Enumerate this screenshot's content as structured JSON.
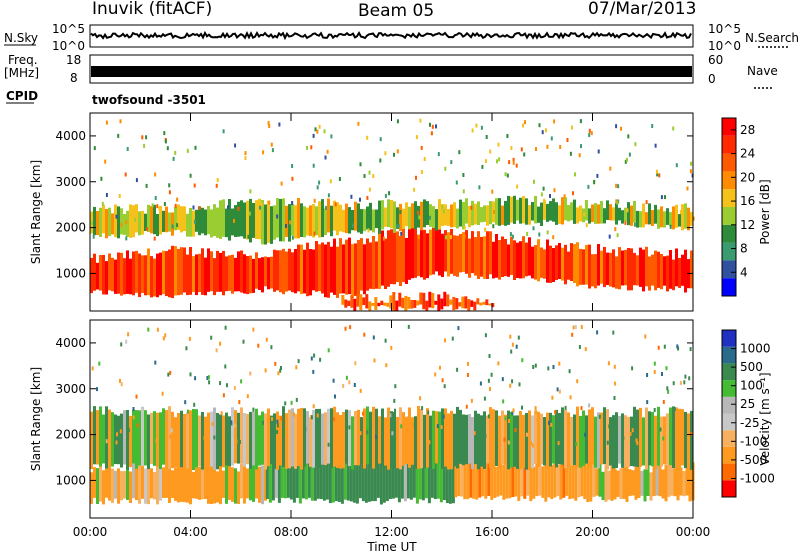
{
  "header": {
    "station": "Inuvik (fitACF)",
    "beam": "Beam 05",
    "date": "07/Mar/2013"
  },
  "aux_panels": {
    "nsky_label": "N.Sky",
    "nsearch_label": "N.Search",
    "freq_label_line1": "Freq.",
    "freq_label_line2": "[MHz]",
    "nave_label": "Nave",
    "cpid_label": "CPID",
    "cpid_value": "twofsound -3501",
    "noise_ticks_left": [
      "10^5",
      "10^0"
    ],
    "noise_ticks_right": [
      "10^5",
      "10^0"
    ],
    "freq_ticks": [
      "18",
      "8"
    ],
    "nave_ticks": [
      "60",
      "0"
    ]
  },
  "colors": {
    "power_scale": [
      "#0000ff",
      "#3050a0",
      "#3a9a70",
      "#2e8b3a",
      "#9acd32",
      "#f5c21b",
      "#ff8c00",
      "#ff5a00",
      "#ff2a00",
      "#ff0000"
    ],
    "velocity_scale": [
      "#ff0000",
      "#ff6a00",
      "#ff9a20",
      "#f7b060",
      "#c8c8c8",
      "#b8b8b8",
      "#44bb33",
      "#3a8a50",
      "#2a6a8a",
      "#2030c0"
    ]
  },
  "chart_data": [
    {
      "type": "heatmap",
      "title": "",
      "quantity": "Power",
      "xlabel": "",
      "ylabel": "Slant Range [km]",
      "x_ticks": [
        "00:00",
        "04:00",
        "08:00",
        "12:00",
        "16:00",
        "20:00",
        "00:00"
      ],
      "x_range_hours": [
        0,
        24
      ],
      "y_ticks": [
        1000,
        2000,
        3000,
        4000
      ],
      "ylim": [
        180,
        4500
      ],
      "colorbar": {
        "label": "Power [dB]",
        "ticks": [
          4,
          8,
          12,
          16,
          20,
          24,
          28
        ],
        "range": [
          0,
          30
        ]
      },
      "bands": [
        {
          "name": "main",
          "start_h": 0,
          "end_h": 24,
          "low_km": [
            600,
            500,
            650,
            500,
            1000,
            900,
            700,
            650
          ],
          "high_km": [
            1300,
            1500,
            1400,
            1700,
            2000,
            1700,
            1500,
            1400
          ],
          "value": 25
        },
        {
          "name": "upper",
          "start_h": 0,
          "end_h": 24,
          "low_km": [
            1800,
            1900,
            1700,
            1900,
            2000,
            2100,
            2100,
            2000
          ],
          "high_km": [
            2400,
            2400,
            2600,
            2500,
            2500,
            2600,
            2500,
            2400
          ],
          "value": 14
        },
        {
          "name": "near",
          "start_h": 10,
          "end_h": 16,
          "low_km": [
            250,
            250,
            250
          ],
          "high_km": [
            450,
            500,
            450
          ],
          "value": 24
        }
      ],
      "grid": false
    },
    {
      "type": "heatmap",
      "title": "",
      "quantity": "Velocity",
      "xlabel": "Time UT",
      "ylabel": "Slant Range [km]",
      "x_ticks": [
        "00:00",
        "04:00",
        "08:00",
        "12:00",
        "16:00",
        "20:00",
        "00:00"
      ],
      "x_range_hours": [
        0,
        24
      ],
      "y_ticks": [
        1000,
        2000,
        3000,
        4000
      ],
      "ylim": [
        180,
        4500
      ],
      "colorbar": {
        "label": "Velocity [m s⁻¹]",
        "ticks": [
          1000,
          500,
          100,
          25,
          -25,
          -100,
          -500,
          -1000
        ],
        "range": [
          -1200,
          1200
        ]
      },
      "segments": [
        {
          "start_h": 0,
          "end_h": 7,
          "low_km": 550,
          "high_km": 1300,
          "value": -200
        },
        {
          "start_h": 7,
          "end_h": 14.5,
          "low_km": 550,
          "high_km": 1700,
          "value": 250
        },
        {
          "start_h": 14.5,
          "end_h": 20,
          "low_km": 600,
          "high_km": 1400,
          "value": -300
        },
        {
          "start_h": 20,
          "end_h": 24,
          "low_km": 600,
          "high_km": 1300,
          "value": -150
        },
        {
          "start_h": 0,
          "end_h": 24,
          "low_km": 1300,
          "high_km": 2500,
          "value": 0
        }
      ],
      "grid": false
    }
  ]
}
